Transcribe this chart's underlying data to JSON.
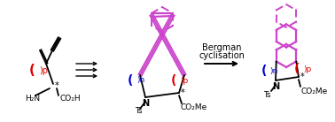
{
  "bg_color": "#ffffff",
  "bond_color": "#000000",
  "purple_color": "#cc44cc",
  "red_color": "#dd0000",
  "blue_color": "#0000cc",
  "bergman_text": [
    "Bergman",
    "cyclisation"
  ],
  "label_ts": "Ts",
  "label_co2me": "CO₂Me",
  "label_co2h": "CO₂H",
  "label_h2n": "H₂N",
  "label_n": "N",
  "label_star": "*"
}
